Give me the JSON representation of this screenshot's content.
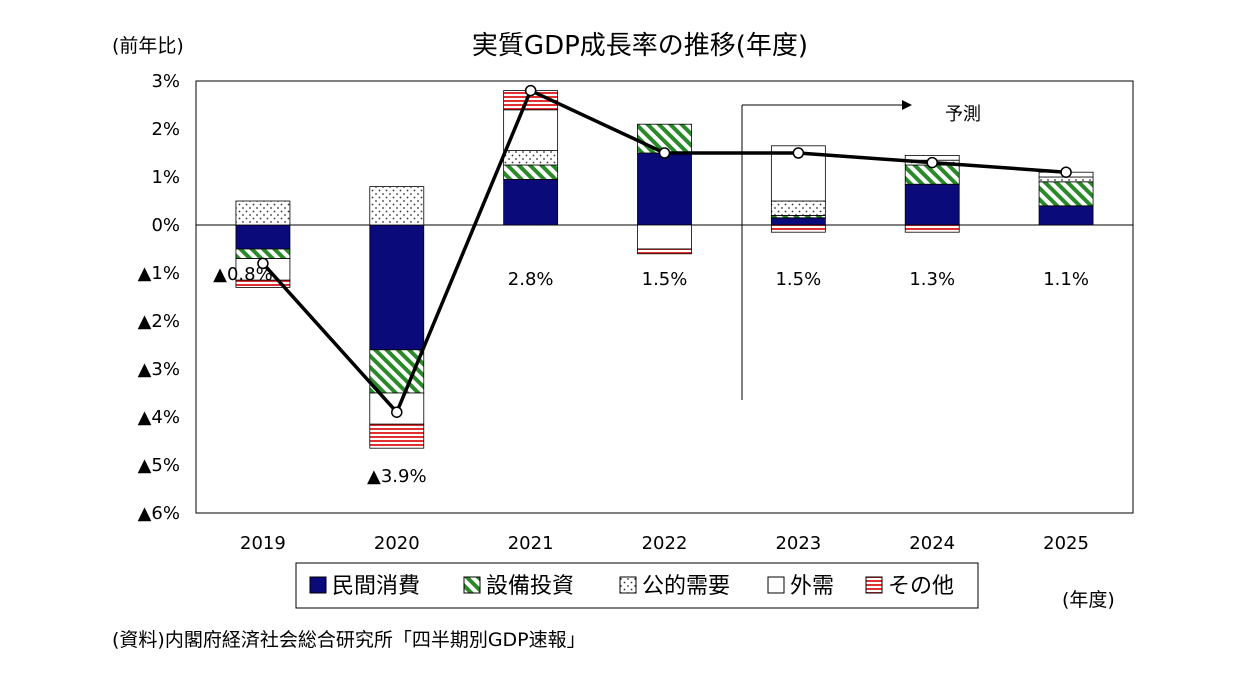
{
  "chart_data": {
    "type": "bar",
    "title": "実質GDP成長率の推移(年度)",
    "y_unit_label": "(前年比)",
    "x_unit_label": "(年度)",
    "forecast_label": "予測",
    "source": "(資料)内閣府経済社会総合研究所「四半期別GDP速報」",
    "ylim": [
      -6,
      3
    ],
    "y_ticks": [
      {
        "value": 3,
        "label": "3%"
      },
      {
        "value": 2,
        "label": "2%"
      },
      {
        "value": 1,
        "label": "1%"
      },
      {
        "value": 0,
        "label": "0%"
      },
      {
        "value": -1,
        "label": "▲1%"
      },
      {
        "value": -2,
        "label": "▲2%"
      },
      {
        "value": -3,
        "label": "▲3%"
      },
      {
        "value": -4,
        "label": "▲4%"
      },
      {
        "value": -5,
        "label": "▲5%"
      },
      {
        "value": -6,
        "label": "▲6%"
      }
    ],
    "categories": [
      "2019",
      "2020",
      "2021",
      "2022",
      "2023",
      "2024",
      "2025"
    ],
    "forecast_from": "2023",
    "series": [
      {
        "name": "民間消費",
        "color": "#0a0a7a",
        "pattern": "solid",
        "values": [
          -0.5,
          -2.6,
          0.95,
          1.5,
          0.15,
          0.85,
          0.4
        ]
      },
      {
        "name": "設備投資",
        "color": "#2a8a2a",
        "pattern": "diagonal",
        "values": [
          -0.2,
          -0.9,
          0.3,
          0.6,
          0.05,
          0.4,
          0.5
        ]
      },
      {
        "name": "公的需要",
        "color": "#555555",
        "pattern": "dots",
        "values": [
          0.5,
          0.8,
          0.3,
          0.0,
          0.3,
          0.1,
          0.1
        ]
      },
      {
        "name": "外需",
        "color": "#000000",
        "pattern": "empty",
        "values": [
          -0.45,
          -0.65,
          0.85,
          -0.5,
          1.15,
          0.1,
          0.1
        ]
      },
      {
        "name": "その他",
        "color": "#e03030",
        "pattern": "hstripes",
        "values": [
          -0.15,
          -0.5,
          0.4,
          -0.1,
          -0.15,
          -0.15,
          0.0
        ]
      }
    ],
    "total": {
      "values": [
        -0.8,
        -3.9,
        2.8,
        1.5,
        1.5,
        1.3,
        1.1
      ],
      "labels": [
        "▲0.8%",
        "▲3.9%",
        "2.8%",
        "1.5%",
        "1.5%",
        "1.3%",
        "1.1%"
      ]
    },
    "legend_position": "bottom"
  }
}
